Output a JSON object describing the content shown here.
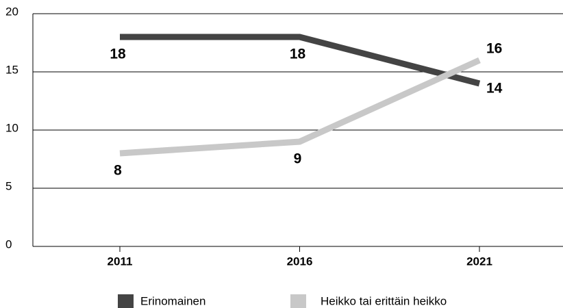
{
  "chart_data": {
    "type": "line",
    "categories": [
      "2011",
      "2016",
      "2021"
    ],
    "series": [
      {
        "name": "Erinomainen",
        "color": "#444444",
        "values": [
          18,
          18,
          14
        ]
      },
      {
        "name": "Heikko tai erittäin heikko",
        "color": "#c8c8c8",
        "values": [
          8,
          9,
          16
        ]
      }
    ],
    "ylim": [
      0,
      20
    ],
    "yticks": [
      0,
      5,
      10,
      15,
      20
    ],
    "grid": true
  }
}
